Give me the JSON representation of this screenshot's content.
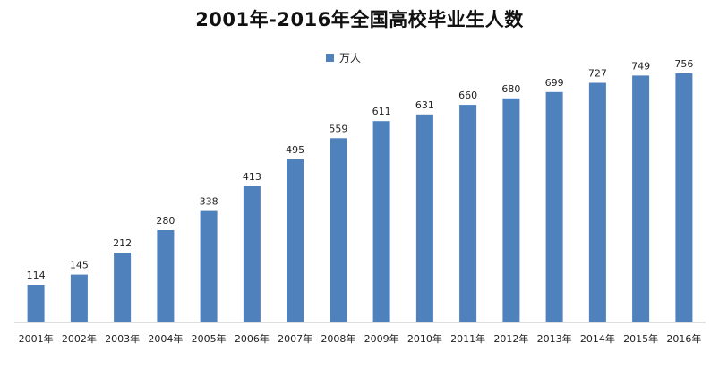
{
  "chart_data": {
    "type": "bar",
    "title": "2001年-2016年全国高校毕业生人数",
    "xlabel": "",
    "ylabel": "",
    "legend": {
      "position": "top-center",
      "entries": [
        "万人"
      ]
    },
    "grid": false,
    "ylim": [
      0,
      800
    ],
    "categories": [
      "2001年",
      "2002年",
      "2003年",
      "2004年",
      "2005年",
      "2006年",
      "2007年",
      "2008年",
      "2009年",
      "2010年",
      "2011年",
      "2012年",
      "2013年",
      "2014年",
      "2015年",
      "2016年"
    ],
    "series": [
      {
        "name": "万人",
        "values": [
          114,
          145,
          212,
          280,
          338,
          413,
          495,
          559,
          611,
          631,
          660,
          680,
          699,
          727,
          749,
          756
        ],
        "color": "#4f81bd"
      }
    ]
  }
}
